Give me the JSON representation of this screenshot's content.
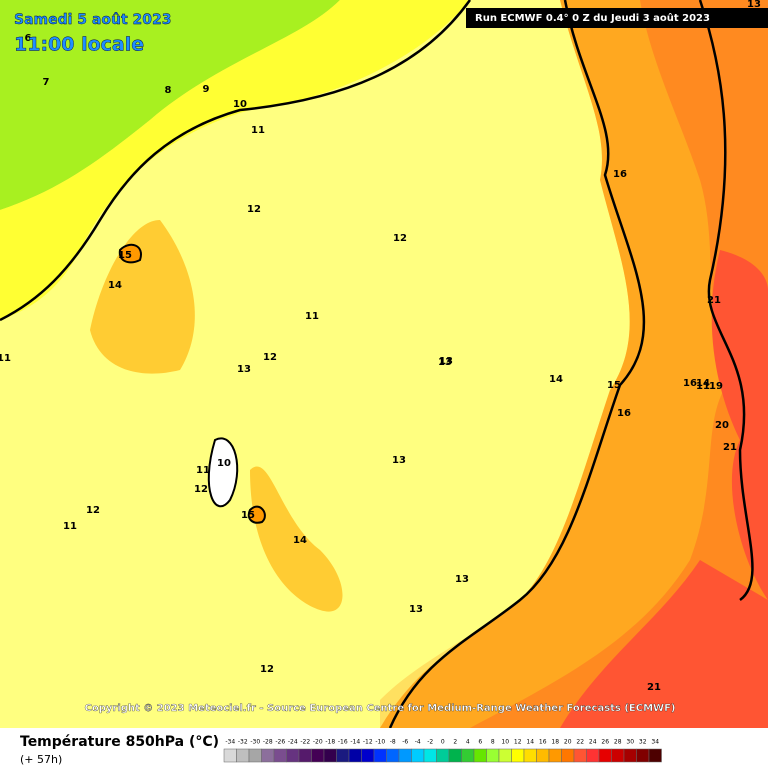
{
  "header": {
    "date": "Samedi 5 août 2023",
    "time": "11:00 locale",
    "run": "Run ECMWF 0.4° 0 Z du Jeudi 3 août 2023"
  },
  "copyright": "Copyright © 2023 Meteociel.fr - Source European Centre for Medium-Range Weather Forecasts (ECMWF)",
  "contour_labels": [
    6,
    7,
    8,
    9,
    10,
    11,
    12,
    12,
    15,
    14,
    11,
    11,
    12,
    13,
    13,
    10,
    11,
    12,
    15,
    14,
    12,
    11,
    13,
    13,
    13,
    13,
    14,
    15,
    16,
    16,
    16,
    14,
    19,
    21,
    20,
    21,
    21,
    13,
    12,
    11
  ],
  "legend": {
    "title": "Température 850hPa (°C)",
    "subtitle": "(+ 57h)",
    "ticks": [
      -34,
      -32,
      -30,
      -28,
      -26,
      -24,
      -22,
      -20,
      -18,
      -16,
      -14,
      -12,
      -10,
      -8,
      -6,
      -4,
      -2,
      0,
      2,
      4,
      6,
      8,
      10,
      12,
      14,
      16,
      18,
      20,
      22,
      24,
      26,
      28,
      30,
      32,
      34
    ],
    "colors": [
      "#d9d9d9",
      "#bfbfbf",
      "#a6a6a6",
      "#8c6f9c",
      "#7a4d8f",
      "#663380",
      "#551a6b",
      "#440055",
      "#33004d",
      "#1a1a80",
      "#0000a6",
      "#0000cc",
      "#0033ff",
      "#0066ff",
      "#0099ff",
      "#00ccff",
      "#00e6e6",
      "#00cc99",
      "#00b34d",
      "#33cc33",
      "#66e600",
      "#99ff33",
      "#ccff33",
      "#ffff00",
      "#ffdd00",
      "#ffbb00",
      "#ff9900",
      "#ff7700",
      "#ff5533",
      "#ff3333",
      "#e60000",
      "#cc0000",
      "#a60000",
      "#800000",
      "#4d0000"
    ]
  }
}
